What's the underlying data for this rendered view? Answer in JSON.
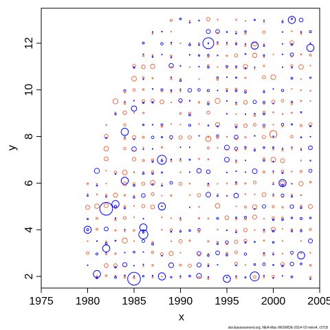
{
  "chart_data": {
    "type": "scatter",
    "xlabel": "x",
    "ylabel": "y",
    "xlim": [
      1975,
      2005
    ],
    "ylim": [
      1.5,
      13.5
    ],
    "xticks": [
      1975,
      1980,
      1985,
      1990,
      1995,
      2000,
      2005
    ],
    "yticks": [
      2,
      4,
      6,
      8,
      10,
      12
    ],
    "grid": false,
    "legend": "none",
    "colors": {
      "negative": "#f05a28",
      "positive": "#0000ff"
    },
    "point_style": "bubble (circle radius = magnitude)",
    "x_range": [
      1980,
      2004
    ],
    "y_levels": [
      2,
      2.5,
      3,
      3.5,
      4,
      4.5,
      5,
      5.5,
      6,
      6.5,
      7,
      7.5,
      8,
      8.5,
      9,
      9.5,
      10,
      10.5,
      11,
      11.5,
      12,
      12.5,
      13
    ],
    "highlight_points": [
      {
        "x": 1980,
        "y": 4.0,
        "size": 3,
        "sign": "positive"
      },
      {
        "x": 1981,
        "y": 2.1,
        "size": 3,
        "sign": "positive"
      },
      {
        "x": 1982,
        "y": 4.9,
        "size": 6,
        "sign": "positive"
      },
      {
        "x": 1982,
        "y": 3.2,
        "size": 3,
        "sign": "positive"
      },
      {
        "x": 1983,
        "y": 5.1,
        "size": 3,
        "sign": "positive"
      },
      {
        "x": 1984,
        "y": 8.2,
        "size": 3,
        "sign": "positive"
      },
      {
        "x": 1984,
        "y": 6.1,
        "size": 3,
        "sign": "positive"
      },
      {
        "x": 1985,
        "y": 1.9,
        "size": 6,
        "sign": "positive"
      },
      {
        "x": 1985,
        "y": 9.2,
        "size": 2,
        "sign": "positive"
      },
      {
        "x": 1986,
        "y": 4.1,
        "size": 3,
        "sign": "positive"
      },
      {
        "x": 1986,
        "y": 3.8,
        "size": 4,
        "sign": "positive"
      },
      {
        "x": 1988,
        "y": 7.0,
        "size": 4,
        "sign": "positive"
      },
      {
        "x": 1988,
        "y": 5.0,
        "size": 3,
        "sign": "positive"
      },
      {
        "x": 1988,
        "y": 2.0,
        "size": 3,
        "sign": "positive"
      },
      {
        "x": 1993,
        "y": 12.0,
        "size": 5,
        "sign": "positive"
      },
      {
        "x": 1993,
        "y": 7.9,
        "size": 2,
        "sign": "negative"
      },
      {
        "x": 1995,
        "y": 1.9,
        "size": 3,
        "sign": "positive"
      },
      {
        "x": 1998,
        "y": 11.9,
        "size": 3,
        "sign": "positive"
      },
      {
        "x": 1998,
        "y": 2.0,
        "size": 4,
        "sign": "positive"
      },
      {
        "x": 2000,
        "y": 8.1,
        "size": 3,
        "sign": "negative"
      },
      {
        "x": 2001,
        "y": 6.0,
        "size": 3,
        "sign": "positive"
      },
      {
        "x": 2002,
        "y": 13.0,
        "size": 3,
        "sign": "positive"
      },
      {
        "x": 2003,
        "y": 2.9,
        "size": 3,
        "sign": "positive"
      },
      {
        "x": 2004,
        "y": 11.8,
        "size": 3,
        "sign": "positive"
      }
    ],
    "caption": "stockassessment.org, NEA-Mac-WGWIDE-2014-V2-retro4, r3718"
  }
}
